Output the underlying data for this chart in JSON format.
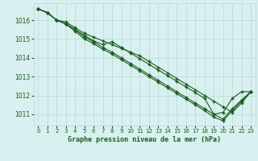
{
  "title": "Graphe pression niveau de la mer (hPa)",
  "background_color": "#d8f0f0",
  "grid_color": "#b8d8d8",
  "line_color": "#1a5c1a",
  "marker": "+",
  "x_ticks": [
    0,
    1,
    2,
    3,
    4,
    5,
    6,
    7,
    8,
    9,
    10,
    11,
    12,
    13,
    14,
    15,
    16,
    17,
    18,
    19,
    20,
    21,
    22,
    23
  ],
  "ylim": [
    1010.4,
    1016.9
  ],
  "yticks": [
    1011,
    1012,
    1013,
    1014,
    1015,
    1016
  ],
  "series": [
    [
      1016.6,
      1016.4,
      1016.0,
      1015.9,
      1015.6,
      1015.3,
      1015.1,
      1014.9,
      1014.7,
      1014.5,
      1014.3,
      1014.1,
      1013.8,
      1013.5,
      1013.2,
      1012.9,
      1012.6,
      1012.3,
      1012.0,
      1011.7,
      1011.4,
      1011.1,
      1011.6,
      1012.2
    ],
    [
      1016.6,
      1016.4,
      1016.0,
      1015.8,
      1015.5,
      1015.2,
      1014.9,
      1014.7,
      1014.85,
      1014.55,
      1014.25,
      1013.95,
      1013.65,
      1013.35,
      1013.05,
      1012.75,
      1012.45,
      1012.15,
      1011.85,
      1011.0,
      1011.1,
      1011.85,
      1012.2,
      1012.2
    ],
    [
      1016.6,
      1016.4,
      1016.0,
      1015.8,
      1015.5,
      1015.1,
      1014.85,
      1014.55,
      1014.3,
      1014.0,
      1013.7,
      1013.4,
      1013.1,
      1012.8,
      1012.5,
      1012.2,
      1011.9,
      1011.6,
      1011.3,
      1011.0,
      1010.75,
      1011.3,
      1011.75,
      1012.2
    ],
    [
      1016.6,
      1016.4,
      1016.0,
      1015.8,
      1015.4,
      1015.0,
      1014.75,
      1014.45,
      1014.2,
      1013.9,
      1013.6,
      1013.3,
      1013.0,
      1012.7,
      1012.4,
      1012.1,
      1011.8,
      1011.5,
      1011.2,
      1010.85,
      1010.65,
      1011.2,
      1011.7,
      1012.2
    ]
  ]
}
